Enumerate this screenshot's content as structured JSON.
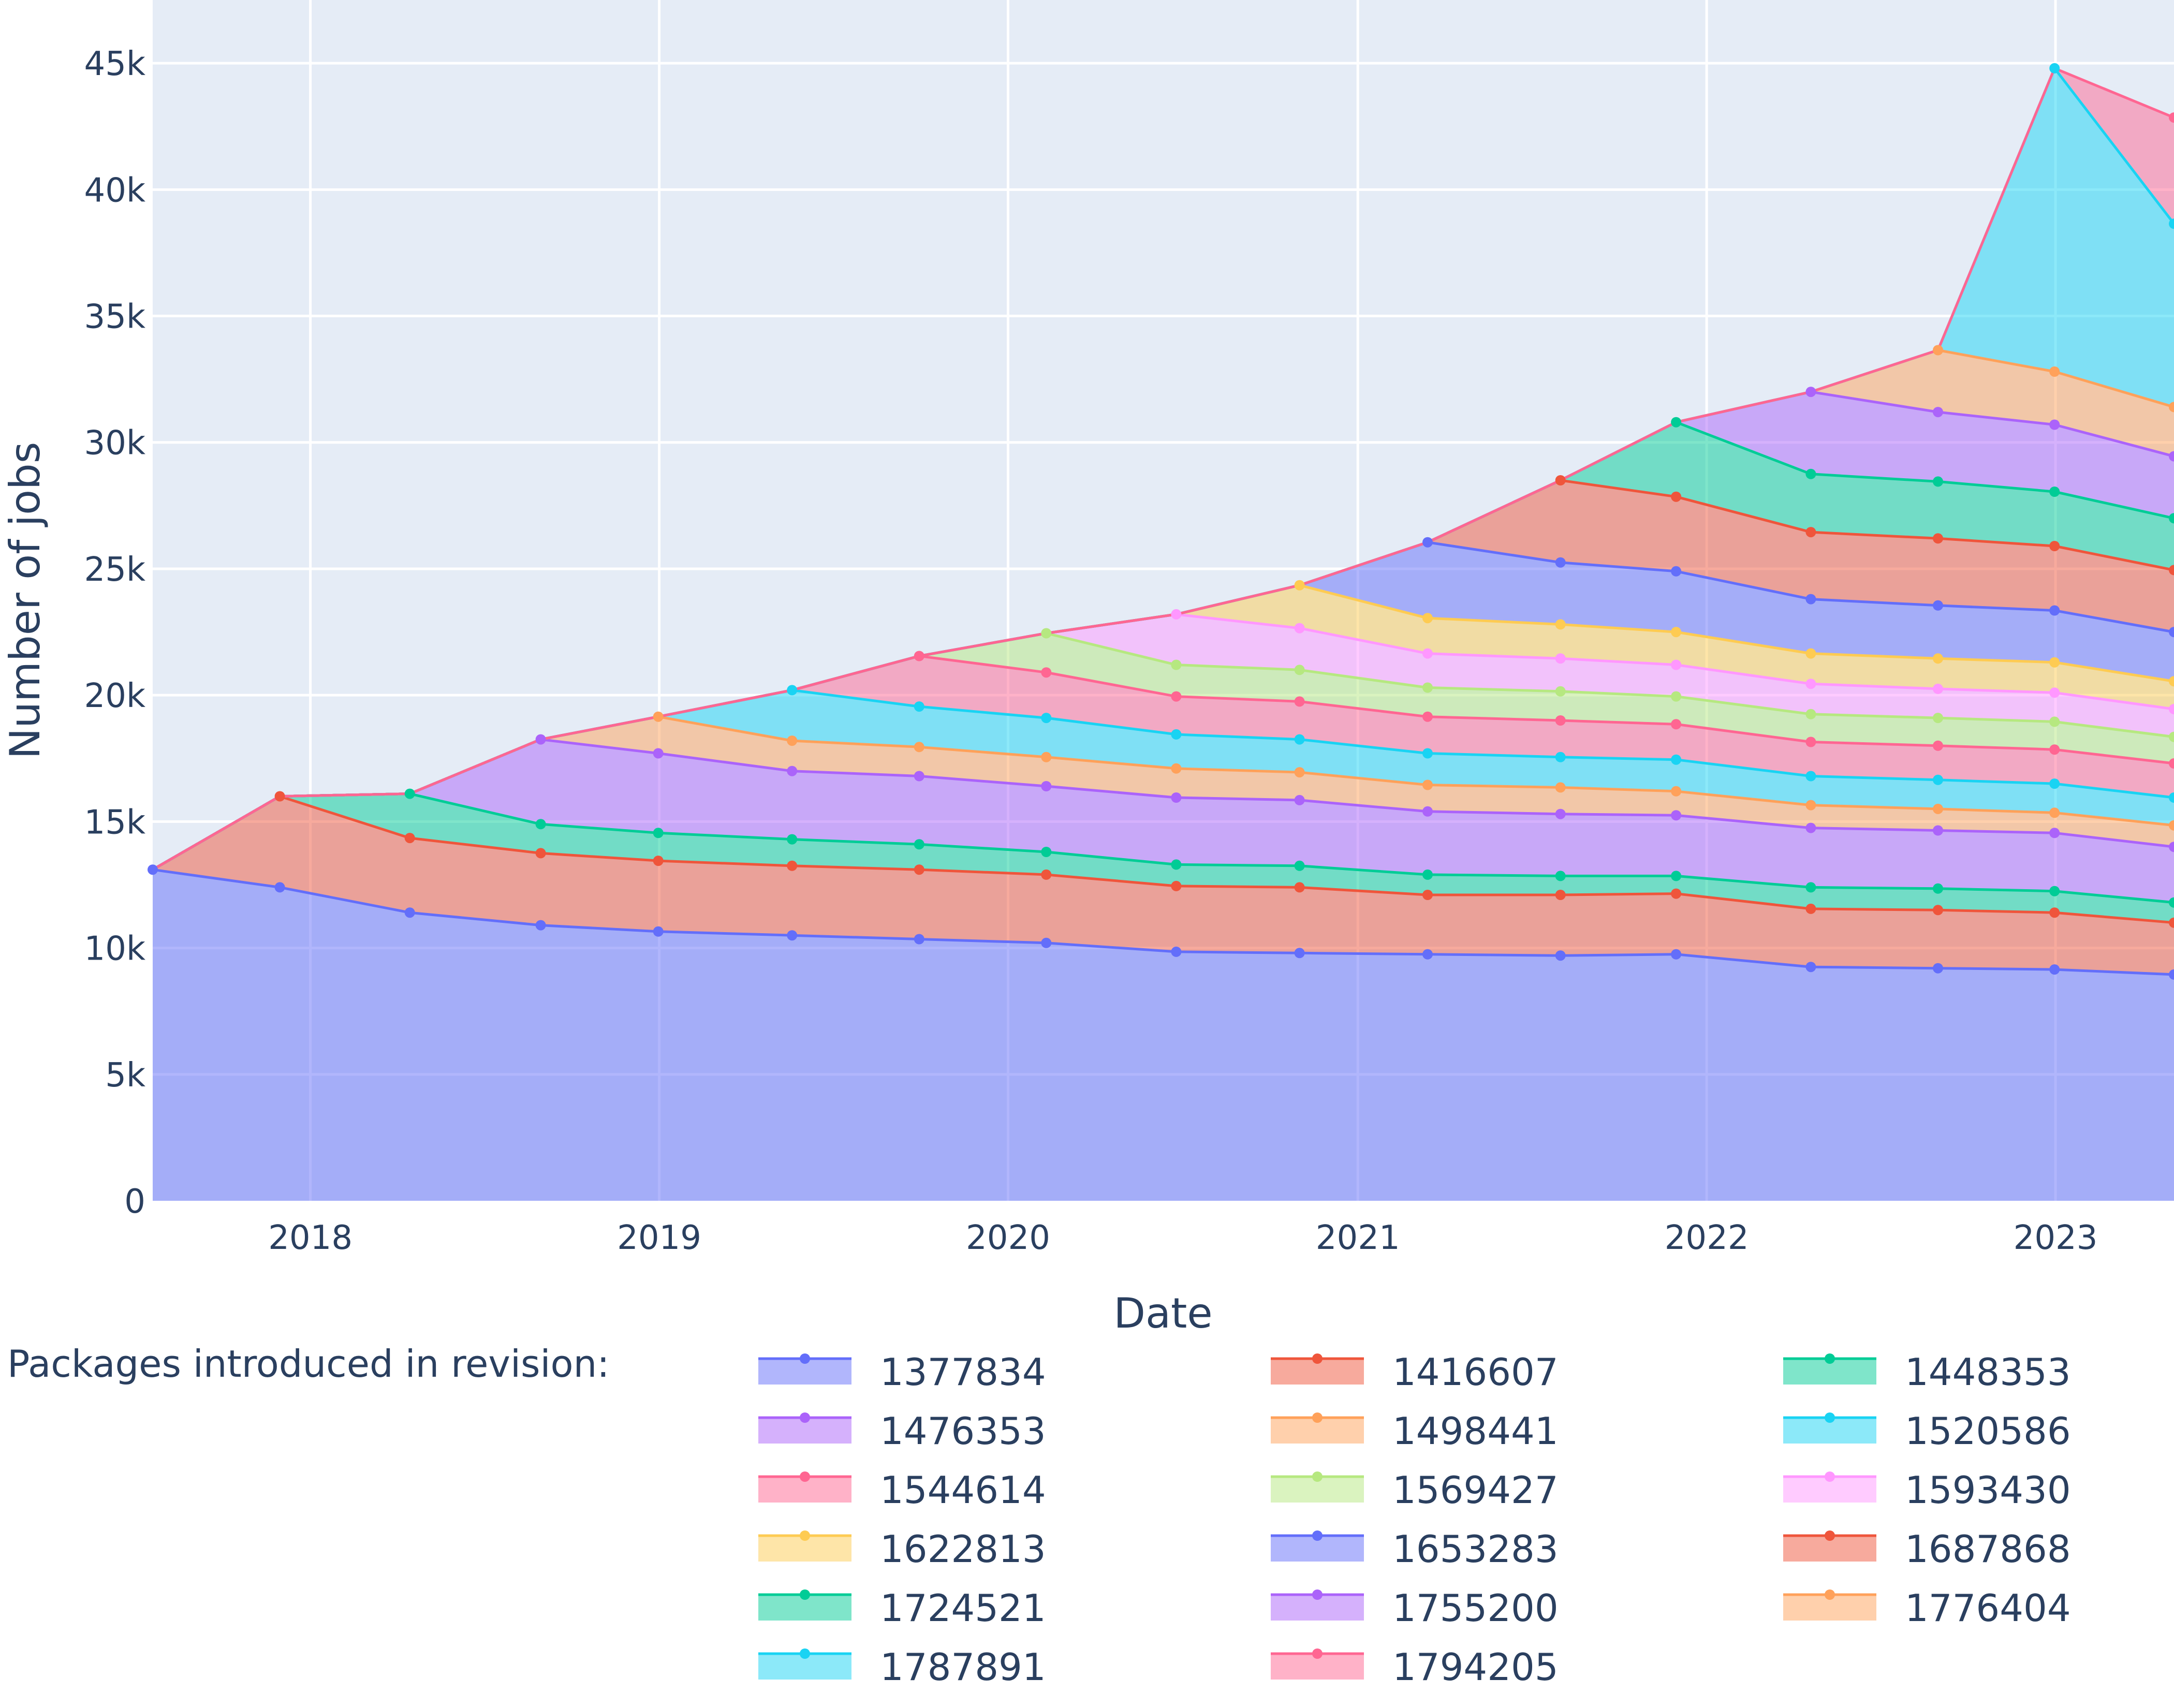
{
  "chart_data": {
    "type": "area",
    "stacked": true,
    "markers": true,
    "xlabel": "Date",
    "ylabel": "Number of jobs",
    "x_axis_type": "date",
    "xlim": [
      "2017-07-20",
      "2023-05-05"
    ],
    "ylim": [
      0,
      47500
    ],
    "x_ticks": [
      "2018",
      "2019",
      "2020",
      "2021",
      "2022",
      "2023"
    ],
    "y_ticks": [
      "0",
      "5k",
      "10k",
      "15k",
      "20k",
      "25k",
      "30k",
      "35k",
      "40k",
      "45k"
    ],
    "grid": true,
    "legend_title": "Packages introduced in revision:",
    "legend_position": "bottom",
    "colors": {
      "plot_background": "#e5ecf6",
      "grid": "#ffffff",
      "text": "#2a3f5f"
    },
    "x": [
      "2017-07-20",
      "2017-11-30",
      "2018-04-15",
      "2018-08-30",
      "2018-12-31",
      "2019-05-20",
      "2019-09-30",
      "2020-02-10",
      "2020-06-25",
      "2020-11-01",
      "2021-03-15",
      "2021-08-01",
      "2021-11-30",
      "2022-04-20",
      "2022-08-31",
      "2022-12-31",
      "2023-05-05"
    ],
    "series": [
      {
        "name": "1377834",
        "color": "#636efa",
        "values": [
          13100,
          12400,
          11400,
          10900,
          10650,
          10500,
          10350,
          10200,
          9850,
          9800,
          9750,
          9700,
          9750,
          9250,
          9200,
          9150,
          8950
        ]
      },
      {
        "name": "1416607",
        "color": "#ef553b",
        "values": [
          0,
          3600,
          2950,
          2850,
          2800,
          2750,
          2750,
          2700,
          2600,
          2600,
          2350,
          2400,
          2400,
          2300,
          2300,
          2250,
          2050
        ]
      },
      {
        "name": "1448353",
        "color": "#00cc96",
        "values": [
          0,
          0,
          1750,
          1150,
          1100,
          1050,
          1000,
          900,
          850,
          850,
          800,
          750,
          700,
          850,
          850,
          850,
          800
        ]
      },
      {
        "name": "1476353",
        "color": "#ab63fa",
        "values": [
          0,
          0,
          0,
          3350,
          3150,
          2700,
          2700,
          2600,
          2650,
          2600,
          2500,
          2450,
          2400,
          2350,
          2300,
          2300,
          2200
        ]
      },
      {
        "name": "1498441",
        "color": "#ffa15a",
        "values": [
          0,
          0,
          0,
          0,
          1450,
          1200,
          1150,
          1150,
          1150,
          1100,
          1050,
          1050,
          950,
          900,
          850,
          800,
          850
        ]
      },
      {
        "name": "1520586",
        "color": "#19d3f3",
        "values": [
          0,
          0,
          0,
          0,
          0,
          2000,
          1600,
          1550,
          1350,
          1300,
          1250,
          1200,
          1250,
          1150,
          1150,
          1150,
          1100
        ]
      },
      {
        "name": "1544614",
        "color": "#ff6692",
        "values": [
          0,
          0,
          0,
          0,
          0,
          0,
          2000,
          1800,
          1500,
          1500,
          1450,
          1450,
          1400,
          1350,
          1350,
          1350,
          1350
        ]
      },
      {
        "name": "1569427",
        "color": "#b6e880",
        "values": [
          0,
          0,
          0,
          0,
          0,
          0,
          0,
          1550,
          1250,
          1250,
          1150,
          1150,
          1100,
          1100,
          1100,
          1100,
          1050
        ]
      },
      {
        "name": "1593430",
        "color": "#ff97ff",
        "values": [
          0,
          0,
          0,
          0,
          0,
          0,
          0,
          0,
          2000,
          1650,
          1350,
          1300,
          1250,
          1200,
          1150,
          1150,
          1100
        ]
      },
      {
        "name": "1622813",
        "color": "#fecb52",
        "values": [
          0,
          0,
          0,
          0,
          0,
          0,
          0,
          0,
          0,
          1700,
          1400,
          1350,
          1300,
          1200,
          1200,
          1200,
          1100
        ]
      },
      {
        "name": "1653283",
        "color": "#636efa",
        "values": [
          0,
          0,
          0,
          0,
          0,
          0,
          0,
          0,
          0,
          0,
          3000,
          2450,
          2400,
          2150,
          2100,
          2050,
          1950
        ]
      },
      {
        "name": "1687868",
        "color": "#ef553b",
        "values": [
          0,
          0,
          0,
          0,
          0,
          0,
          0,
          0,
          0,
          0,
          0,
          3250,
          2950,
          2650,
          2650,
          2550,
          2450
        ]
      },
      {
        "name": "1724521",
        "color": "#00cc96",
        "values": [
          0,
          0,
          0,
          0,
          0,
          0,
          0,
          0,
          0,
          0,
          0,
          0,
          2950,
          2300,
          2250,
          2150,
          2050
        ]
      },
      {
        "name": "1755200",
        "color": "#ab63fa",
        "values": [
          0,
          0,
          0,
          0,
          0,
          0,
          0,
          0,
          0,
          0,
          0,
          0,
          0,
          3250,
          2750,
          2650,
          2450
        ]
      },
      {
        "name": "1776404",
        "color": "#ffa15a",
        "values": [
          0,
          0,
          0,
          0,
          0,
          0,
          0,
          0,
          0,
          0,
          0,
          0,
          0,
          0,
          2450,
          2100,
          1950
        ]
      },
      {
        "name": "1787891",
        "color": "#19d3f3",
        "values": [
          0,
          0,
          0,
          0,
          0,
          0,
          0,
          0,
          0,
          0,
          0,
          0,
          0,
          0,
          0,
          12000,
          7250
        ]
      },
      {
        "name": "1794205",
        "color": "#ff6692",
        "values": [
          0,
          0,
          0,
          0,
          0,
          0,
          0,
          0,
          0,
          0,
          0,
          0,
          0,
          0,
          0,
          0,
          4200
        ]
      }
    ]
  }
}
